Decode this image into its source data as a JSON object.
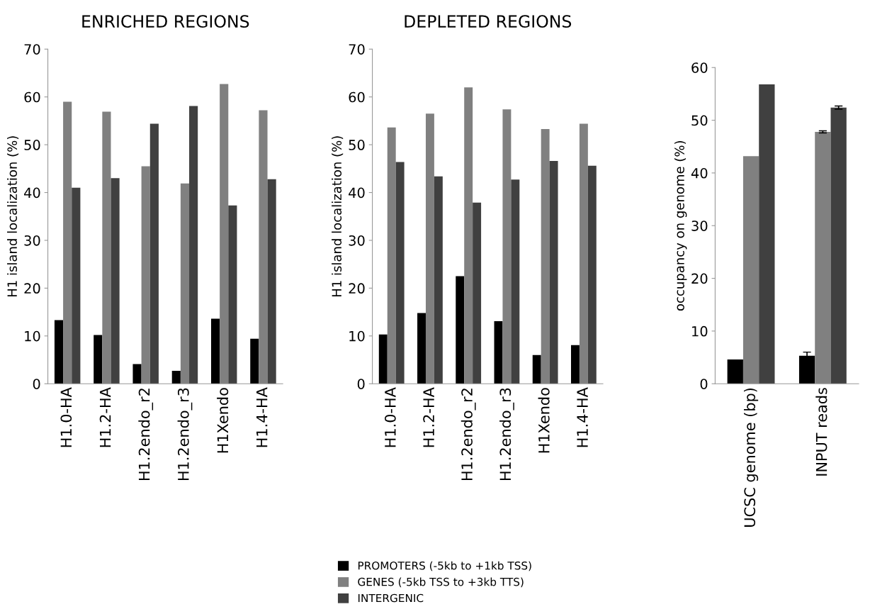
{
  "chart_data": [
    {
      "type": "bar",
      "title": "ENRICHED REGIONS",
      "ylabel": "H1 island localization (%)",
      "categories": [
        "H1.0-HA",
        "H1.2-HA",
        "H1.2endo_r2",
        "H1.2endo_r3",
        "H1Xendo",
        "H1.4-HA"
      ],
      "ylim": [
        0,
        70
      ],
      "yticks": [
        0,
        10,
        20,
        30,
        40,
        50,
        60,
        70
      ],
      "legend": "bottom",
      "grid": false,
      "series": [
        {
          "name": "PROMOTERS (-5kb to +1kb TSS)",
          "color": "#000000",
          "values": [
            13.3,
            10.2,
            4.1,
            2.7,
            13.6,
            9.4
          ]
        },
        {
          "name": "GENES (-5kb TSS to +3kb TTS)",
          "color": "#808080",
          "values": [
            59.0,
            56.9,
            45.5,
            41.9,
            62.7,
            57.2
          ]
        },
        {
          "name": "INTERGENIC",
          "color": "#404040",
          "values": [
            41.0,
            43.0,
            54.4,
            58.1,
            37.3,
            42.8
          ]
        }
      ]
    },
    {
      "type": "bar",
      "title": "DEPLETED REGIONS",
      "ylabel": "H1 island localization (%)",
      "categories": [
        "H1.0-HA",
        "H1.2-HA",
        "H1.2endo_r2",
        "H1.2endo_r3",
        "H1Xendo",
        "H1.4-HA"
      ],
      "ylim": [
        0,
        70
      ],
      "yticks": [
        0,
        10,
        20,
        30,
        40,
        50,
        60,
        70
      ],
      "grid": false,
      "series": [
        {
          "color": "#000000",
          "values": [
            10.3,
            14.8,
            22.5,
            13.1,
            6.0,
            8.1
          ]
        },
        {
          "color": "#808080",
          "values": [
            53.6,
            56.5,
            62.0,
            57.4,
            53.3,
            54.4
          ]
        },
        {
          "color": "#404040",
          "values": [
            46.4,
            43.4,
            37.9,
            42.7,
            46.6,
            45.6
          ]
        }
      ]
    },
    {
      "type": "bar",
      "ylabel": "occupancy on genome (%)",
      "categories": [
        "UCSC genome (bp)",
        "INPUT reads"
      ],
      "ylim": [
        0,
        60
      ],
      "yticks": [
        0,
        10,
        20,
        30,
        40,
        50,
        60
      ],
      "grid": false,
      "series": [
        {
          "color": "#000000",
          "values": [
            4.6,
            5.3
          ],
          "errors": [
            null,
            0.7
          ]
        },
        {
          "color": "#808080",
          "values": [
            43.2,
            47.8
          ],
          "errors": [
            null,
            0.2
          ]
        },
        {
          "color": "#404040",
          "values": [
            56.8,
            52.4
          ],
          "errors": [
            null,
            0.3
          ]
        }
      ]
    }
  ]
}
